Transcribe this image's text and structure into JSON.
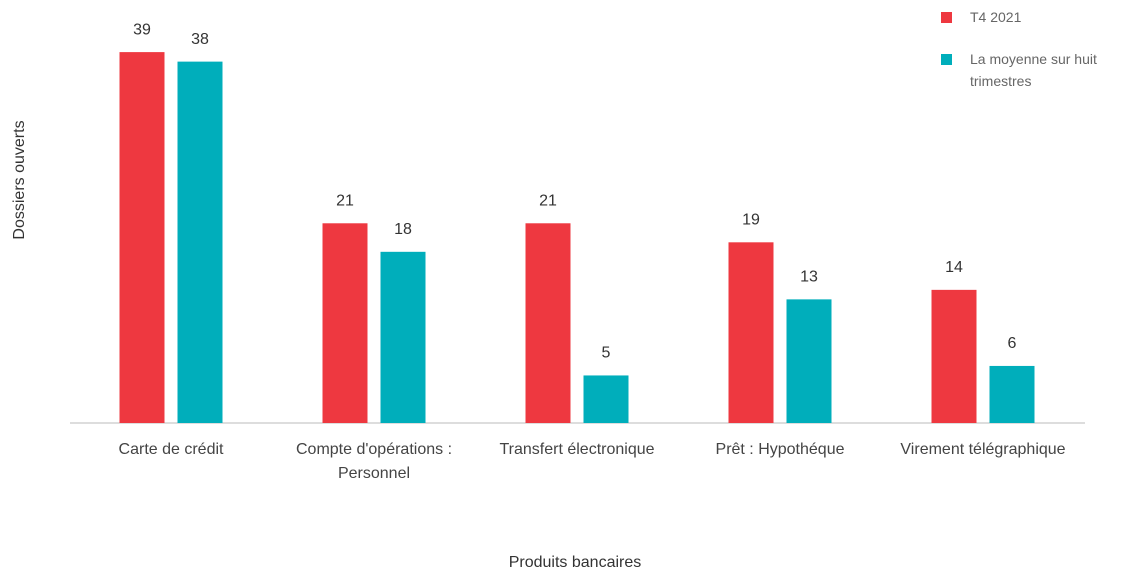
{
  "chart_data": {
    "type": "bar",
    "x_label": "Produits bancaires",
    "y_label": "Dossiers ouverts",
    "categories": [
      "Carte de crédit",
      "Compte d'opérations : Personnel",
      "Transfert électronique",
      "Prêt : Hypothéque",
      "Virement télégraphique"
    ],
    "series": [
      {
        "name": "T4 2021",
        "color": "#ee3840",
        "values": [
          39,
          21,
          21,
          19,
          14
        ]
      },
      {
        "name": "La moyenne sur huit trimestres",
        "color": "#00aebb",
        "values": [
          38,
          18,
          5,
          13,
          6
        ]
      }
    ],
    "ylim": [
      0,
      40
    ],
    "legend": "top-right"
  }
}
